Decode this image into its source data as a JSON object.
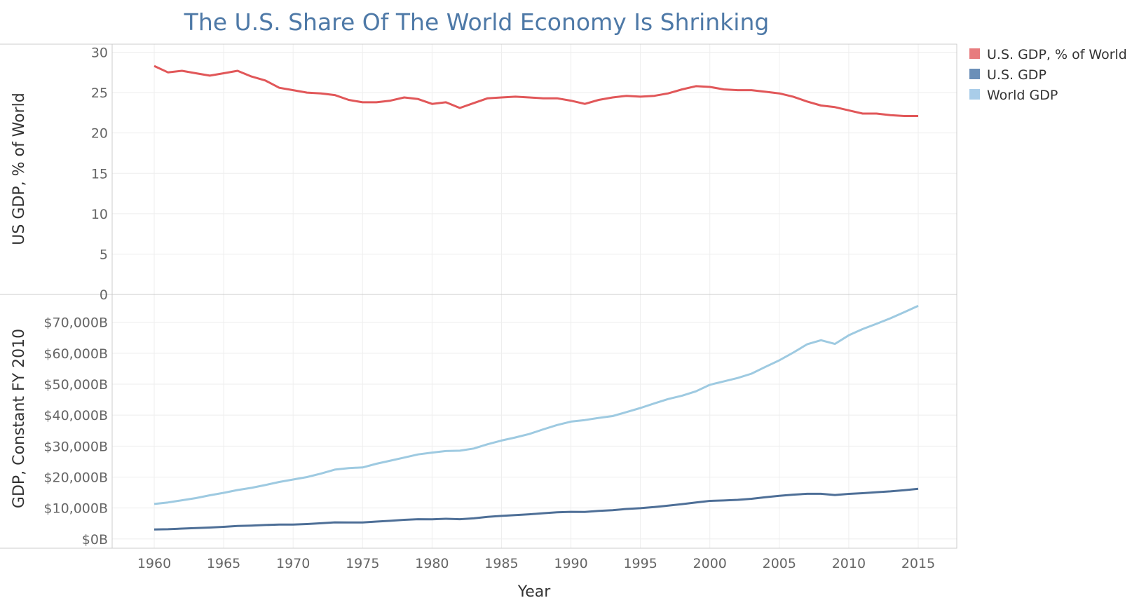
{
  "chart_data": {
    "type": "line",
    "title": "The U.S. Share Of The World Economy Is Shrinking",
    "xlabel": "Year",
    "x_ticks": [
      "1960",
      "1965",
      "1970",
      "1975",
      "1980",
      "1985",
      "1990",
      "1995",
      "2000",
      "2005",
      "2010",
      "2015"
    ],
    "grid": true,
    "legend": {
      "placement": "top-right",
      "entries": [
        {
          "name": "U.S. GDP, % of World",
          "color": "#e77c7e"
        },
        {
          "name": "U.S. GDP",
          "color": "#6b8fb8"
        },
        {
          "name": "World GDP",
          "color": "#a9cde9"
        }
      ]
    },
    "x": [
      1960,
      1961,
      1962,
      1963,
      1964,
      1965,
      1966,
      1967,
      1968,
      1969,
      1970,
      1971,
      1972,
      1973,
      1974,
      1975,
      1976,
      1977,
      1978,
      1979,
      1980,
      1981,
      1982,
      1983,
      1984,
      1985,
      1986,
      1987,
      1988,
      1989,
      1990,
      1991,
      1992,
      1993,
      1994,
      1995,
      1996,
      1997,
      1998,
      1999,
      2000,
      2001,
      2002,
      2003,
      2004,
      2005,
      2006,
      2007,
      2008,
      2009,
      2010,
      2011,
      2012,
      2013,
      2014,
      2015
    ],
    "panels": [
      {
        "ylabel": "US GDP, % of World",
        "ylim": [
          0,
          31
        ],
        "y_ticks": [
          0,
          5,
          10,
          15,
          20,
          25,
          30
        ],
        "y_tick_labels": [
          "0",
          "5",
          "10",
          "15",
          "20",
          "25",
          "30"
        ],
        "series": [
          {
            "name": "U.S. GDP, % of World",
            "color": "#e15759",
            "values": [
              28.3,
              27.5,
              27.7,
              27.4,
              27.1,
              27.4,
              27.7,
              27.0,
              26.5,
              25.6,
              25.3,
              25.0,
              24.9,
              24.7,
              24.1,
              23.8,
              23.8,
              24.0,
              24.4,
              24.2,
              23.6,
              23.8,
              23.1,
              23.7,
              24.3,
              24.4,
              24.5,
              24.4,
              24.3,
              24.3,
              24.0,
              23.6,
              24.1,
              24.4,
              24.6,
              24.5,
              24.6,
              24.9,
              25.4,
              25.8,
              25.7,
              25.4,
              25.3,
              25.3,
              25.1,
              24.9,
              24.5,
              23.9,
              23.4,
              23.2,
              22.8,
              22.4,
              22.4,
              22.2,
              22.1,
              22.1
            ]
          }
        ]
      },
      {
        "ylabel": "GDP, Constant FY 2010",
        "ylim": [
          -3000,
          79000
        ],
        "y_ticks": [
          0,
          10000,
          20000,
          30000,
          40000,
          50000,
          60000,
          70000
        ],
        "y_tick_labels": [
          "$0B",
          "$10,000B",
          "$20,000B",
          "$30,000B",
          "$40,000B",
          "$50,000B",
          "$60,000B",
          "$70,000B"
        ],
        "series": [
          {
            "name": "World GDP",
            "color": "#9ecae1",
            "values": [
              11300,
              11800,
              12500,
              13200,
              14100,
              14900,
              15800,
              16500,
              17400,
              18400,
              19200,
              20000,
              21100,
              22400,
              22900,
              23100,
              24300,
              25300,
              26300,
              27300,
              27900,
              28400,
              28500,
              29200,
              30600,
              31800,
              32800,
              33900,
              35400,
              36800,
              37900,
              38400,
              39100,
              39700,
              41000,
              42300,
              43800,
              45200,
              46300,
              47700,
              49800,
              50900,
              52000,
              53400,
              55600,
              57700,
              60200,
              62900,
              64200,
              63000,
              65800,
              67800,
              69500,
              71300,
              73300,
              75300
            ]
          },
          {
            "name": "U.S. GDP",
            "color": "#4e6f97",
            "values": [
              3080,
              3150,
              3340,
              3490,
              3690,
              3920,
              4180,
              4290,
              4500,
              4650,
              4660,
              4810,
              5070,
              5350,
              5320,
              5310,
              5600,
              5850,
              6170,
              6370,
              6350,
              6510,
              6380,
              6660,
              7140,
              7440,
              7700,
              7970,
              8300,
              8590,
              8750,
              8740,
              9060,
              9310,
              9680,
              9940,
              10310,
              10770,
              11250,
              11800,
              12300,
              12420,
              12640,
              12970,
              13470,
              13920,
              14300,
              14580,
              14570,
              14190,
              14560,
              14790,
              15110,
              15380,
              15750,
              16200
            ]
          }
        ]
      }
    ]
  }
}
